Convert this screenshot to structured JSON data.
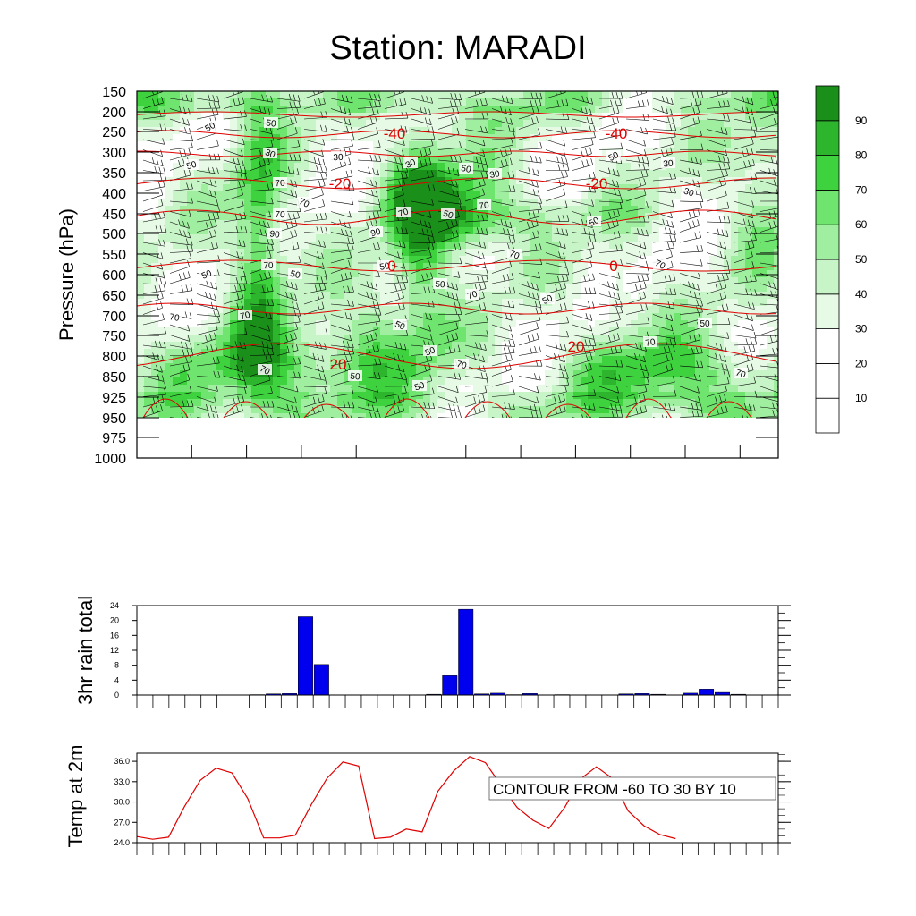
{
  "chart_data": [
    {
      "type": "heatmap",
      "title": "Station: MARADI",
      "ylabel": "Pressure (hPa)",
      "xlabel": "",
      "y_ticks": [
        150,
        200,
        250,
        300,
        350,
        400,
        450,
        500,
        550,
        600,
        650,
        700,
        750,
        800,
        850,
        925,
        950,
        975,
        1000
      ],
      "colorbar": {
        "levels": [
          10,
          20,
          30,
          40,
          50,
          60,
          70,
          80,
          90
        ],
        "colors": [
          "#ffffff",
          "#ffffff",
          "#ffffff",
          "#e6fae6",
          "#c8f5c8",
          "#a0eea0",
          "#6fe46f",
          "#3fd23f",
          "#2db52d",
          "#1a8f1a"
        ]
      },
      "humidity_contour_labels": [
        "50",
        "50",
        "50",
        "30",
        "30",
        "30",
        "50",
        "30",
        "70",
        "70",
        "70",
        "50",
        "70",
        "50",
        "90",
        "90",
        "70",
        "70",
        "50",
        "50",
        "50",
        "70",
        "50",
        "70",
        "30",
        "30",
        "50",
        "70",
        "70",
        "50",
        "50",
        "50",
        "70",
        "70",
        "70",
        "50",
        "50",
        "70",
        "70",
        "50"
      ],
      "temperature_contour_labels": [
        "-40",
        "-40",
        "-20",
        "-20",
        "0",
        "0",
        "20",
        "20"
      ],
      "temperature_contour_color": "#e00000"
    },
    {
      "type": "bar",
      "ylabel": "3hr rain total",
      "ylim": [
        0,
        24
      ],
      "y_ticks": [
        "24",
        "20",
        "16",
        "12",
        "8",
        "4",
        "0"
      ],
      "n_intervals": 40,
      "values": [
        0,
        0,
        0,
        0,
        0,
        0,
        0,
        0.1,
        0.3,
        0.4,
        21,
        8.2,
        0,
        0,
        0,
        0,
        0,
        0,
        0.2,
        5.2,
        23,
        0.3,
        0.5,
        0.1,
        0.4,
        0,
        0.1,
        0,
        0,
        0,
        0.3,
        0.4,
        0.2,
        0,
        0.5,
        1.6,
        0.7,
        0.2,
        0,
        0
      ],
      "bar_color": "#0000ee"
    },
    {
      "type": "line",
      "ylabel": "Temp at 2m",
      "ylim": [
        24,
        37.2
      ],
      "y_ticks": [
        "36.0",
        "33.0",
        "30.0",
        "27.0",
        "24.0"
      ],
      "x": [
        0,
        0.5,
        1,
        1.5,
        2,
        2.5,
        3,
        3.5,
        4,
        4.5,
        5,
        5.5,
        6,
        6.5,
        7,
        7.5,
        8,
        8.5,
        9,
        9.5,
        10,
        10.5,
        11,
        11.5,
        12,
        12.5,
        13,
        13.5,
        14,
        14.5,
        15,
        15.5,
        16,
        16.5,
        17
      ],
      "values": [
        24.9,
        24.5,
        24.8,
        29.3,
        33.2,
        35.0,
        34.3,
        30.5,
        24.7,
        24.7,
        25.1,
        29.6,
        33.5,
        35.9,
        35.3,
        24.6,
        24.8,
        26.0,
        25.6,
        31.6,
        34.6,
        36.7,
        35.8,
        32.4,
        29.2,
        27.3,
        26.1,
        29.2,
        33.4,
        35.2,
        33.5,
        28.7,
        26.5,
        25.2,
        24.6
      ],
      "line_color": "#e00000",
      "annotation": "CONTOUR FROM -60 TO 30 BY 10"
    }
  ]
}
